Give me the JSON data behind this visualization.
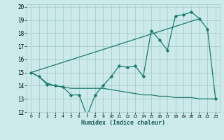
{
  "title": "",
  "xlabel": "Humidex (Indice chaleur)",
  "bg_color": "#cceaea",
  "grid_color": "#aacccc",
  "line_color": "#1a7a6e",
  "xlim": [
    -0.5,
    23.5
  ],
  "ylim": [
    12,
    20.2
  ],
  "xticks": [
    0,
    1,
    2,
    3,
    4,
    5,
    6,
    7,
    8,
    9,
    10,
    11,
    12,
    13,
    14,
    15,
    16,
    17,
    18,
    19,
    20,
    21,
    22,
    23
  ],
  "yticks": [
    12,
    13,
    14,
    15,
    16,
    17,
    18,
    19,
    20
  ],
  "line1_x": [
    0,
    1,
    2,
    3,
    4,
    5,
    6,
    7,
    8,
    9,
    10,
    11,
    12,
    13,
    14,
    15,
    16,
    17,
    18,
    19,
    20,
    21,
    22,
    23
  ],
  "line1_y": [
    15.0,
    14.7,
    14.1,
    14.0,
    13.9,
    13.3,
    13.3,
    11.7,
    13.3,
    14.0,
    14.7,
    15.5,
    15.4,
    15.5,
    14.7,
    18.2,
    17.5,
    16.7,
    19.3,
    19.4,
    19.6,
    19.1,
    18.3,
    13.0
  ],
  "line2_x": [
    0,
    1,
    2,
    3,
    4,
    5,
    6,
    7,
    8,
    9,
    10,
    11,
    12,
    13,
    14,
    15,
    16,
    17,
    18,
    19,
    20,
    21,
    22,
    23
  ],
  "line2_y": [
    15.0,
    14.7,
    14.2,
    14.0,
    13.9,
    13.8,
    13.8,
    13.8,
    13.8,
    13.8,
    13.7,
    13.6,
    13.5,
    13.4,
    13.3,
    13.3,
    13.2,
    13.2,
    13.1,
    13.1,
    13.1,
    13.0,
    13.0,
    13.0
  ],
  "line3_x": [
    0,
    21
  ],
  "line3_y": [
    15.0,
    19.1
  ]
}
